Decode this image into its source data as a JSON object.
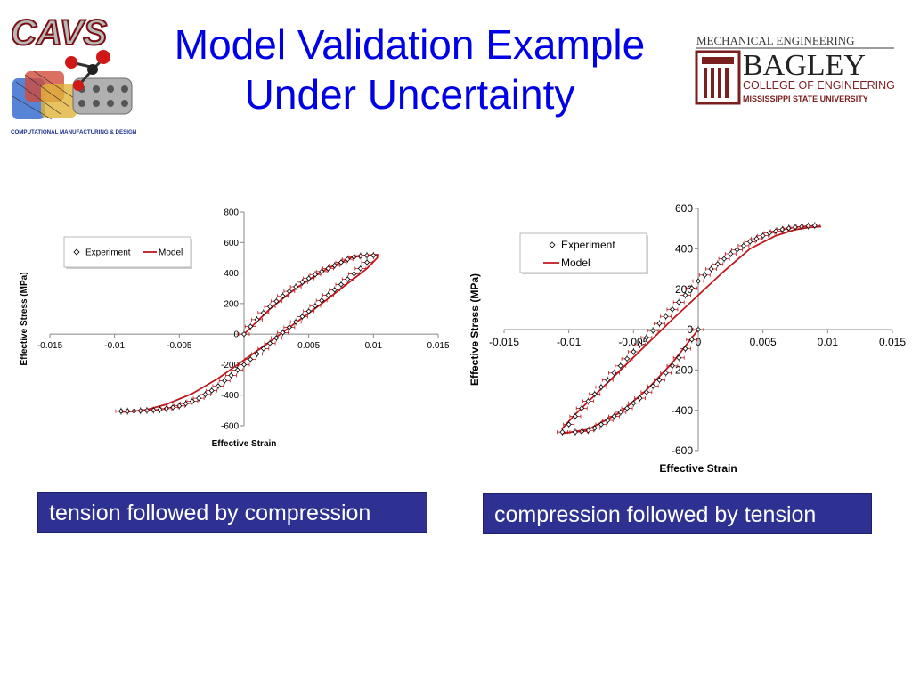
{
  "slide": {
    "title_line1": "Model Validation Example",
    "title_line2": "Under Uncertainty",
    "logo_left": {
      "name": "CAVS",
      "tagline": "COMPUTATIONAL MANUFACTURING & DESIGN"
    },
    "logo_right": {
      "line1": "MECHANICAL ENGINEERING",
      "line2": "BAGLEY",
      "line3": "COLLEGE OF ENGINEERING",
      "line4": "MISSISSIPPI STATE UNIVERSITY"
    },
    "caption_left": "tension followed by compression",
    "caption_right": "compression followed by tension",
    "colors": {
      "title": "#0000e6",
      "caption_bg": "#2e3192",
      "model_line": "#c0171d"
    }
  },
  "chart_data": [
    {
      "type": "scatter",
      "title": "",
      "xlabel": "Effective Strain",
      "ylabel": "Effective Stress (MPa)",
      "xlim": [
        -0.015,
        0.015
      ],
      "ylim": [
        -600,
        800
      ],
      "xticks": [
        -0.015,
        -0.01,
        -0.005,
        0,
        0.005,
        0.01,
        0.015
      ],
      "yticks": [
        -600,
        -400,
        -200,
        0,
        200,
        400,
        600,
        800
      ],
      "x_tick_labels": [
        "-0.015",
        "-0.01",
        "-0.005",
        "",
        "0.005",
        "0.01",
        "0.015"
      ],
      "y_tick_labels": [
        "-600",
        "-400",
        "-200",
        "0",
        "200",
        "400",
        "600",
        "800"
      ],
      "legend": {
        "placement": "top-left",
        "entries": [
          "Experiment",
          "Model"
        ]
      },
      "series": [
        {
          "name": "Experiment",
          "x": [
            0,
            0.0005,
            0.001,
            0.0015,
            0.002,
            0.0025,
            0.003,
            0.0035,
            0.004,
            0.0045,
            0.005,
            0.0055,
            0.006,
            0.0065,
            0.007,
            0.0075,
            0.008,
            0.0085,
            0.009,
            0.0095,
            0.01,
            0.0095,
            0.009,
            0.0085,
            0.008,
            0.0075,
            0.007,
            0.0065,
            0.006,
            0.0055,
            0.005,
            0.0045,
            0.004,
            0.0035,
            0.003,
            0.0025,
            0.002,
            0.0015,
            0.001,
            0.0005,
            0,
            -0.0005,
            -0.001,
            -0.0015,
            -0.002,
            -0.0025,
            -0.003,
            -0.0035,
            -0.004,
            -0.0045,
            -0.005,
            -0.0055,
            -0.006,
            -0.0065,
            -0.007,
            -0.0075,
            -0.008,
            -0.0085,
            -0.009,
            -0.0095
          ],
          "y": [
            0,
            50,
            95,
            140,
            180,
            215,
            250,
            280,
            310,
            340,
            365,
            390,
            410,
            430,
            450,
            470,
            490,
            505,
            512,
            515,
            515,
            470,
            430,
            395,
            360,
            325,
            290,
            255,
            220,
            185,
            150,
            115,
            80,
            45,
            10,
            -25,
            -60,
            -95,
            -130,
            -165,
            -200,
            -235,
            -270,
            -305,
            -340,
            -370,
            -395,
            -420,
            -440,
            -455,
            -470,
            -480,
            -488,
            -494,
            -498,
            -500,
            -502,
            -504,
            -505,
            -505
          ]
        },
        {
          "name": "Model",
          "x": [
            0,
            0.002,
            0.004,
            0.006,
            0.008,
            0.0085,
            0.0103,
            0.0103,
            0.0095,
            0.006,
            0.002,
            -0.002,
            -0.004,
            -0.006,
            -0.0075,
            -0.0085,
            -0.0095
          ],
          "y": [
            0,
            165,
            300,
            410,
            490,
            510,
            520,
            500,
            430,
            200,
            -50,
            -290,
            -390,
            -460,
            -495,
            -505,
            -510
          ]
        }
      ]
    },
    {
      "type": "scatter",
      "title": "",
      "xlabel": "Effective Strain",
      "ylabel": "Effective Stress (MPa)",
      "xlim": [
        -0.015,
        0.015
      ],
      "ylim": [
        -600,
        600
      ],
      "xticks": [
        -0.015,
        -0.01,
        -0.005,
        0,
        0.005,
        0.01,
        0.015
      ],
      "yticks": [
        -600,
        -400,
        -200,
        0,
        200,
        400,
        600
      ],
      "x_tick_labels": [
        "-0.015",
        "-0.01",
        "-0.005",
        "0",
        "0.005",
        "0.01",
        "0.015"
      ],
      "y_tick_labels": [
        "-600",
        "-400",
        "-200",
        "0",
        "200",
        "400",
        "600"
      ],
      "legend": {
        "placement": "top-left",
        "entries": [
          "Experiment",
          "Model"
        ]
      },
      "series": [
        {
          "name": "Experiment",
          "x": [
            0,
            -0.0005,
            -0.001,
            -0.0015,
            -0.002,
            -0.0025,
            -0.003,
            -0.0035,
            -0.004,
            -0.0045,
            -0.005,
            -0.0055,
            -0.006,
            -0.0065,
            -0.007,
            -0.0075,
            -0.008,
            -0.0085,
            -0.009,
            -0.0095,
            -0.0105,
            -0.01,
            -0.0095,
            -0.009,
            -0.0085,
            -0.008,
            -0.0075,
            -0.007,
            -0.0065,
            -0.006,
            -0.0055,
            -0.005,
            -0.0045,
            -0.004,
            -0.0035,
            -0.003,
            -0.0025,
            -0.002,
            -0.0015,
            -0.001,
            -0.0005,
            0,
            0.0005,
            0.001,
            0.0015,
            0.002,
            0.0025,
            0.003,
            0.0035,
            0.004,
            0.0045,
            0.005,
            0.0055,
            0.006,
            0.0065,
            0.007,
            0.0075,
            0.008,
            0.0085,
            0.009
          ],
          "y": [
            0,
            -50,
            -95,
            -140,
            -180,
            -215,
            -250,
            -280,
            -310,
            -340,
            -365,
            -390,
            -410,
            -430,
            -450,
            -470,
            -488,
            -500,
            -505,
            -508,
            -508,
            -470,
            -430,
            -390,
            -355,
            -320,
            -285,
            -250,
            -215,
            -180,
            -145,
            -110,
            -75,
            -40,
            -5,
            30,
            65,
            100,
            135,
            170,
            205,
            240,
            270,
            300,
            325,
            350,
            375,
            395,
            415,
            435,
            450,
            465,
            478,
            488,
            496,
            502,
            507,
            510,
            513,
            515
          ]
        },
        {
          "name": "Model",
          "x": [
            0,
            -0.002,
            -0.004,
            -0.006,
            -0.0085,
            -0.0105,
            -0.0105,
            -0.0095,
            -0.006,
            -0.002,
            0.002,
            0.004,
            0.006,
            0.0075,
            0.0085,
            0.0095
          ],
          "y": [
            0,
            -165,
            -300,
            -410,
            -495,
            -515,
            -490,
            -420,
            -200,
            50,
            290,
            400,
            465,
            495,
            505,
            510
          ]
        }
      ]
    }
  ]
}
